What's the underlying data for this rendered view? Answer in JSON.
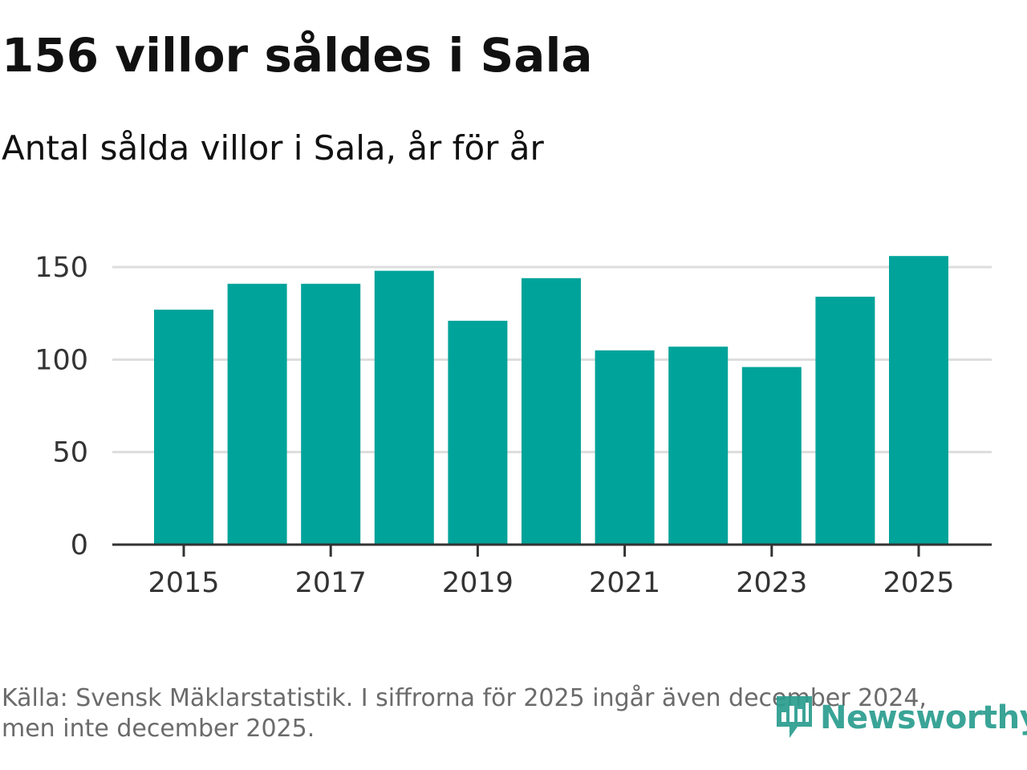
{
  "header": {
    "title": "156 villor såldes i Sala",
    "subtitle": "Antal sålda villor i Sala, år för år"
  },
  "footer": {
    "source_line1": "Källa: Svensk Mäklarstatistik. I siffrorna för 2025 ingår även december 2024,",
    "source_line2": "men inte december 2025.",
    "logo_text": "Newsworthy",
    "logo_icon": "newsworthy-chart-icon"
  },
  "colors": {
    "bar": "#00a39a",
    "grid": "#dddddd",
    "axis": "#333333",
    "logo": "#2a9d8f"
  },
  "chart_data": {
    "type": "bar",
    "title": "156 villor såldes i Sala",
    "subtitle": "Antal sålda villor i Sala, år för år",
    "categories": [
      "2015",
      "2016",
      "2017",
      "2018",
      "2019",
      "2020",
      "2021",
      "2022",
      "2023",
      "2024",
      "2025"
    ],
    "values": [
      127,
      141,
      141,
      148,
      121,
      144,
      105,
      107,
      96,
      134,
      156
    ],
    "x_tick_labels": [
      "2015",
      "2017",
      "2019",
      "2021",
      "2023",
      "2025"
    ],
    "y_ticks": [
      0,
      50,
      100,
      150
    ],
    "ylim": [
      0,
      160
    ],
    "xlabel": "",
    "ylabel": "",
    "grid": true
  }
}
